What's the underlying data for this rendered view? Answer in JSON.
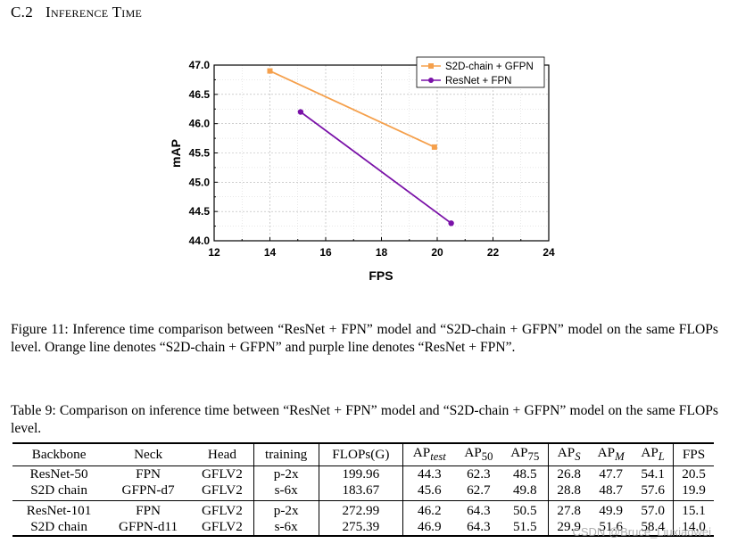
{
  "section": {
    "number": "C.2",
    "title": "Inference Time"
  },
  "chart_data": {
    "type": "line",
    "xlabel": "FPS",
    "ylabel": "mAP",
    "xlim": [
      12,
      24
    ],
    "ylim": [
      44.0,
      47.0
    ],
    "xticks": [
      "12",
      "14",
      "16",
      "18",
      "20",
      "22",
      "24"
    ],
    "yticks": [
      "44.0",
      "44.5",
      "45.0",
      "45.5",
      "46.0",
      "46.5",
      "47.0"
    ],
    "grid": true,
    "legend_position": "top-right",
    "series": [
      {
        "name": "S2D-chain + GFPN",
        "color": "#f5a04c",
        "marker": "square",
        "x": [
          14.0,
          19.9
        ],
        "y": [
          46.9,
          45.6
        ]
      },
      {
        "name": "ResNet + FPN",
        "color": "#7a12a8",
        "marker": "circle",
        "x": [
          15.1,
          20.5
        ],
        "y": [
          46.2,
          44.3
        ]
      }
    ]
  },
  "figure_caption": "Figure 11: Inference time comparison between “ResNet + FPN” model and “S2D-chain + GFPN” model on the same FLOPs level. Orange line denotes “S2D-chain + GFPN” and purple line denotes “ResNet + FPN”.",
  "table_caption": "Table 9: Comparison on inference time between “ResNet + FPN” model and “S2D-chain + GFPN” model on the same FLOPs level.",
  "table": {
    "headers": {
      "backbone": "Backbone",
      "neck": "Neck",
      "head": "Head",
      "training": "training",
      "flops": "FLOPs(G)",
      "ap_test": {
        "base": "AP",
        "sub": "test"
      },
      "ap50": {
        "base": "AP",
        "sub": "50"
      },
      "ap75": {
        "base": "AP",
        "sub": "75"
      },
      "aps": {
        "base": "AP",
        "sub": "S"
      },
      "apm": {
        "base": "AP",
        "sub": "M"
      },
      "apl": {
        "base": "AP",
        "sub": "L"
      },
      "fps": "FPS"
    },
    "rows": [
      {
        "backbone": "ResNet-50",
        "neck": "FPN",
        "head": "GFLV2",
        "training": "p-2x",
        "flops": "199.96",
        "ap_test": "44.3",
        "ap50": "62.3",
        "ap75": "48.5",
        "aps": "26.8",
        "apm": "47.7",
        "apl": "54.1",
        "fps": "20.5"
      },
      {
        "backbone": "S2D chain",
        "neck": "GFPN-d7",
        "head": "GFLV2",
        "training": "s-6x",
        "flops": "183.67",
        "ap_test": "45.6",
        "ap50": "62.7",
        "ap75": "49.8",
        "aps": "28.8",
        "apm": "48.7",
        "apl": "57.6",
        "fps": "19.9"
      },
      {
        "backbone": "ResNet-101",
        "neck": "FPN",
        "head": "GFLV2",
        "training": "p-2x",
        "flops": "272.99",
        "ap_test": "46.2",
        "ap50": "64.3",
        "ap75": "50.5",
        "aps": "27.8",
        "apm": "49.9",
        "apl": "57.0",
        "fps": "15.1"
      },
      {
        "backbone": "S2D chain",
        "neck": "GFPN-d11",
        "head": "GFLV2",
        "training": "s-6x",
        "flops": "275.39",
        "ap_test": "46.9",
        "ap50": "64.3",
        "ap75": "51.5",
        "aps": "29.9",
        "apm": "51.6",
        "apl": "58.4",
        "fps": "14.0"
      }
    ]
  },
  "watermark": "CSDN @Bruce_Liuxiaowei"
}
